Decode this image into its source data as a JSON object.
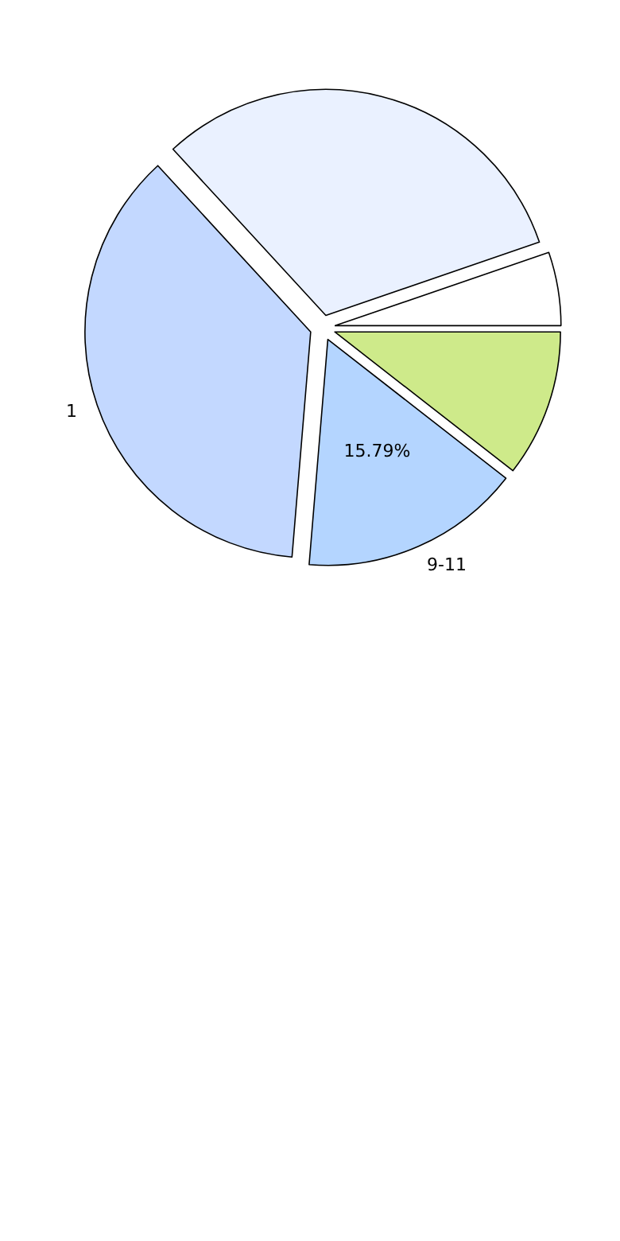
{
  "chart_data": {
    "type": "pie",
    "categories": [
      null,
      null,
      "1",
      "9-11",
      null
    ],
    "values": [
      5.26,
      31.58,
      36.84,
      15.79,
      10.53
    ],
    "colors": [
      "#ffffff",
      "#eaf1ff",
      "#c3d8ff",
      "#b4d5ff",
      "#ceea8a"
    ],
    "value_labels": [
      null,
      null,
      null,
      "15.79%",
      null
    ]
  }
}
